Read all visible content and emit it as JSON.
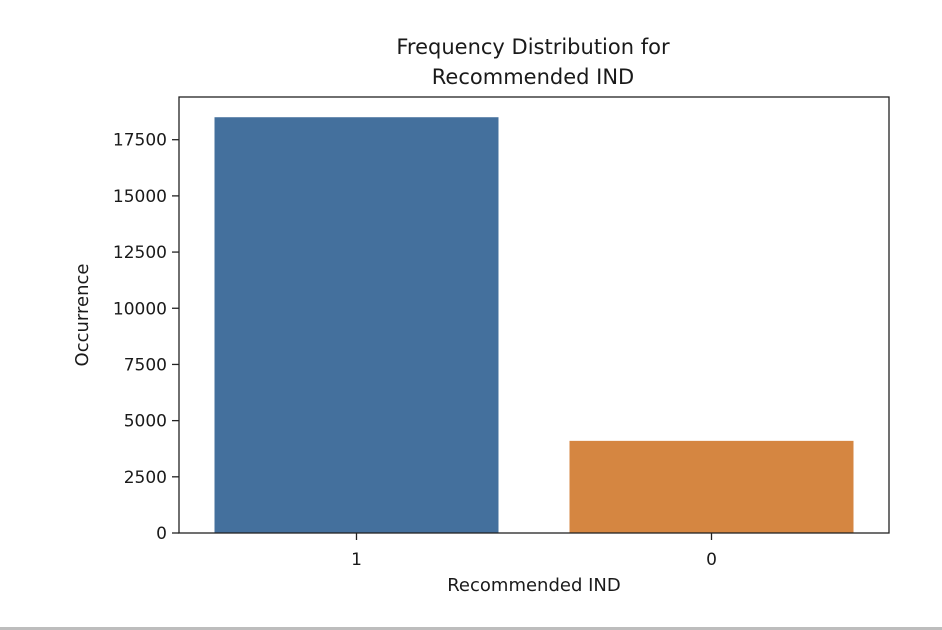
{
  "chart_data": {
    "type": "bar",
    "title": [
      "Frequency Distribution for",
      "Recommended IND"
    ],
    "xlabel": "Recommended IND",
    "ylabel": "Occurrence",
    "categories": [
      "1",
      "0"
    ],
    "values": [
      18500,
      4100
    ],
    "colors": [
      "#44709d",
      "#d58641"
    ],
    "ylim": [
      0,
      19400
    ],
    "yticks": [
      0,
      2500,
      5000,
      7500,
      10000,
      12500,
      15000,
      17500
    ],
    "grid": false,
    "legend": "none"
  }
}
